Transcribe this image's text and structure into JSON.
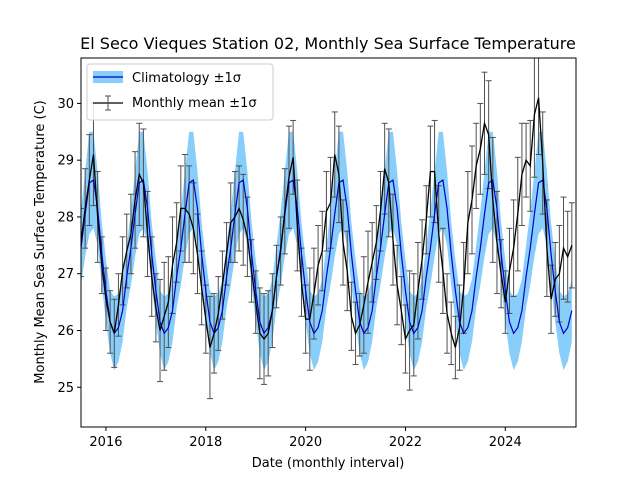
{
  "chart_data": {
    "type": "line",
    "title": "El Seco Vieques Station 02, Monthly Sea Surface Temperature",
    "xlabel": "Date (monthly interval)",
    "ylabel": "Monthly Mean Sea Surface Temperature (C)",
    "xlim": [
      "2015-07",
      "2025-06"
    ],
    "ylim": [
      24.3,
      30.8
    ],
    "xticks": [
      "2016",
      "2018",
      "2020",
      "2022",
      "2024"
    ],
    "yticks": [
      "25",
      "26",
      "27",
      "28",
      "29",
      "30"
    ],
    "grid": false,
    "legend": "top-left",
    "climatology": {
      "name": "Climatology ±1σ",
      "line_color": "#0000cd",
      "band_color": "#87cefa",
      "months": [
        1,
        2,
        3,
        4,
        5,
        6,
        7,
        8,
        9,
        10,
        11,
        12
      ],
      "mean": [
        26.7,
        26.15,
        25.95,
        26.05,
        26.35,
        26.95,
        27.45,
        28.05,
        28.6,
        28.65,
        28.15,
        27.35
      ],
      "sd": [
        0.55,
        0.55,
        0.65,
        0.6,
        0.55,
        0.55,
        0.65,
        0.75,
        0.9,
        0.85,
        0.65,
        0.55
      ]
    },
    "monthly": {
      "name": "Monthly mean ±1σ",
      "line_color": "#000000",
      "error_color": "#505050",
      "start": "2015-07",
      "mean": [
        27.55,
        28.15,
        28.65,
        29.1,
        28.0,
        27.15,
        26.55,
        26.15,
        25.95,
        26.45,
        27.05,
        27.4,
        27.7,
        28.3,
        28.75,
        28.6,
        27.7,
        26.95,
        26.4,
        26.0,
        26.25,
        26.5,
        27.15,
        27.55,
        28.15,
        28.15,
        28.05,
        27.8,
        27.35,
        26.75,
        26.2,
        25.7,
        25.95,
        26.3,
        26.8,
        27.35,
        27.9,
        28.0,
        28.15,
        27.95,
        27.65,
        27.05,
        26.5,
        25.95,
        25.85,
        25.95,
        26.35,
        26.95,
        27.4,
        28.1,
        28.7,
        29.05,
        27.85,
        26.85,
        26.2,
        26.2,
        26.65,
        27.15,
        27.4,
        28.1,
        28.25,
        29.1,
        28.75,
        27.55,
        27.05,
        26.25,
        25.95,
        26.1,
        26.45,
        26.85,
        27.2,
        27.55,
        28.1,
        28.85,
        28.6,
        27.6,
        26.8,
        26.35,
        25.85,
        26.0,
        26.1,
        26.7,
        27.25,
        27.95,
        28.8,
        28.8,
        27.7,
        27.05,
        26.3,
        25.95,
        25.7,
        26.05,
        26.75,
        27.9,
        28.3,
        28.9,
        29.2,
        29.65,
        29.45,
        28.3,
        27.55,
        27.0,
        26.5,
        27.05,
        27.45,
        28.05,
        28.75,
        29.0,
        28.9,
        29.8,
        30.1,
        28.95,
        27.45,
        26.55,
        26.9,
        27.0,
        27.45,
        27.3,
        27.5
      ],
      "sd": [
        0.6,
        0.7,
        0.8,
        0.9,
        0.8,
        0.5,
        0.55,
        0.55,
        0.6,
        0.55,
        0.6,
        0.65,
        0.7,
        0.85,
        0.9,
        0.95,
        0.75,
        0.7,
        0.6,
        0.9,
        0.95,
        0.8,
        0.85,
        0.7,
        0.75,
        0.95,
        0.85,
        0.8,
        0.7,
        0.65,
        0.6,
        0.9,
        0.7,
        0.65,
        0.6,
        0.55,
        0.7,
        0.8,
        0.75,
        0.8,
        0.7,
        0.55,
        0.55,
        0.8,
        0.8,
        0.75,
        0.65,
        0.55,
        0.6,
        0.75,
        0.9,
        0.65,
        0.8,
        0.6,
        0.6,
        0.9,
        0.8,
        0.7,
        0.7,
        0.7,
        0.8,
        0.75,
        0.85,
        0.75,
        0.7,
        0.6,
        0.55,
        0.55,
        0.85,
        0.9,
        0.7,
        0.65,
        0.7,
        0.8,
        0.95,
        0.8,
        0.7,
        0.6,
        0.6,
        1.05,
        0.9,
        0.85,
        0.7,
        0.6,
        0.8,
        0.9,
        0.85,
        0.75,
        0.7,
        0.55,
        0.55,
        0.75,
        0.8,
        0.9,
        0.95,
        0.75,
        0.8,
        0.9,
        0.95,
        1.1,
        0.9,
        0.6,
        0.55,
        0.75,
        0.85,
        1.0,
        0.9,
        0.65,
        0.8,
        1.1,
        1.0,
        0.9,
        0.85,
        0.6,
        0.65,
        0.85,
        0.9,
        0.8,
        0.75
      ]
    }
  }
}
